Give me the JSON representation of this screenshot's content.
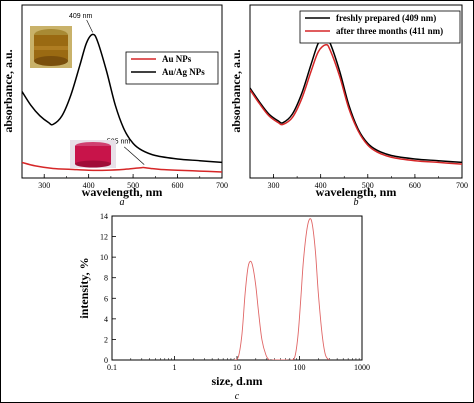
{
  "chart_data": [
    {
      "type": "line",
      "panel_label": "a",
      "xlabel": "wavelength, nm",
      "ylabel": "absorbance, a.u.",
      "xlim": [
        250,
        700
      ],
      "ylim": [
        0,
        1.0
      ],
      "x_ticks": [
        300,
        400,
        500,
        600,
        700
      ],
      "legend_position": "top-right",
      "annotations": [
        {
          "text": "409 nm",
          "x": 409,
          "y": 0.86
        },
        {
          "text": "525 nm",
          "x": 525,
          "y": 0.06
        }
      ],
      "series": [
        {
          "name": "Au NPs",
          "color": "#d62728",
          "x": [
            250,
            280,
            320,
            360,
            400,
            440,
            480,
            500,
            520,
            525,
            540,
            560,
            600,
            650,
            700
          ],
          "y": [
            0.09,
            0.07,
            0.055,
            0.05,
            0.045,
            0.045,
            0.05,
            0.055,
            0.06,
            0.06,
            0.055,
            0.05,
            0.045,
            0.04,
            0.035
          ]
        },
        {
          "name": "Au/Ag NPs",
          "color": "#000000",
          "x": [
            250,
            270,
            290,
            310,
            320,
            340,
            360,
            380,
            395,
            409,
            420,
            440,
            460,
            480,
            500,
            520,
            550,
            600,
            650,
            700
          ],
          "y": [
            0.5,
            0.42,
            0.36,
            0.32,
            0.31,
            0.36,
            0.48,
            0.65,
            0.78,
            0.83,
            0.79,
            0.62,
            0.42,
            0.28,
            0.2,
            0.16,
            0.13,
            0.11,
            0.1,
            0.09
          ]
        }
      ]
    },
    {
      "type": "line",
      "panel_label": "b",
      "xlabel": "wavelength, nm",
      "ylabel": "absorbance, a.u.",
      "xlim": [
        250,
        700
      ],
      "ylim": [
        0,
        1.0
      ],
      "x_ticks": [
        300,
        400,
        500,
        600,
        700
      ],
      "legend_position": "top-right",
      "series": [
        {
          "name": "freshly prepared (409 nm)",
          "color": "#000000",
          "x": [
            250,
            270,
            290,
            310,
            320,
            340,
            360,
            380,
            395,
            409,
            420,
            440,
            460,
            480,
            500,
            520,
            550,
            600,
            650,
            700
          ],
          "y": [
            0.52,
            0.44,
            0.37,
            0.33,
            0.32,
            0.37,
            0.49,
            0.66,
            0.78,
            0.82,
            0.78,
            0.62,
            0.42,
            0.28,
            0.2,
            0.16,
            0.13,
            0.11,
            0.1,
            0.09
          ]
        },
        {
          "name": "after three months (411 nm)",
          "color": "#d62728",
          "x": [
            250,
            270,
            290,
            310,
            320,
            340,
            360,
            380,
            395,
            411,
            420,
            440,
            460,
            480,
            500,
            520,
            550,
            600,
            650,
            700
          ],
          "y": [
            0.51,
            0.43,
            0.36,
            0.32,
            0.31,
            0.35,
            0.46,
            0.62,
            0.73,
            0.77,
            0.74,
            0.59,
            0.4,
            0.27,
            0.19,
            0.15,
            0.12,
            0.1,
            0.09,
            0.08
          ]
        }
      ]
    },
    {
      "type": "line",
      "panel_label": "c",
      "xlabel": "size, d.nm",
      "ylabel": "intensity, %",
      "x_scale": "log",
      "xlim": [
        0.1,
        1000
      ],
      "ylim": [
        0,
        14
      ],
      "x_ticks": [
        0.1,
        1,
        10,
        100,
        1000
      ],
      "x_tick_labels": [
        "0.1",
        "1",
        "10",
        "100",
        "1000"
      ],
      "y_ticks": [
        0,
        2,
        4,
        6,
        8,
        10,
        12,
        14
      ],
      "series": [
        {
          "color": "#e06666",
          "x": [
            9,
            10.5,
            12,
            13.5,
            15,
            16.5,
            18,
            20,
            22,
            25,
            29,
            33,
            38,
            45,
            60,
            75,
            85,
            95,
            105,
            115,
            130,
            145,
            160,
            180,
            200,
            230,
            260,
            300
          ],
          "y": [
            0,
            0.3,
            2.5,
            6.5,
            9.0,
            9.6,
            9.0,
            7.2,
            4.8,
            2.0,
            0.5,
            0,
            0,
            0,
            0,
            0,
            0.4,
            2.5,
            6.0,
            9.5,
            12.5,
            13.7,
            13.2,
            10.5,
            6.5,
            2.5,
            0.5,
            0
          ]
        }
      ]
    }
  ],
  "insets": {
    "a_top_photo": "amber nanoparticle solution vial (photo)",
    "a_bottom_photo": "red nanoparticle solution vial (photo)"
  }
}
